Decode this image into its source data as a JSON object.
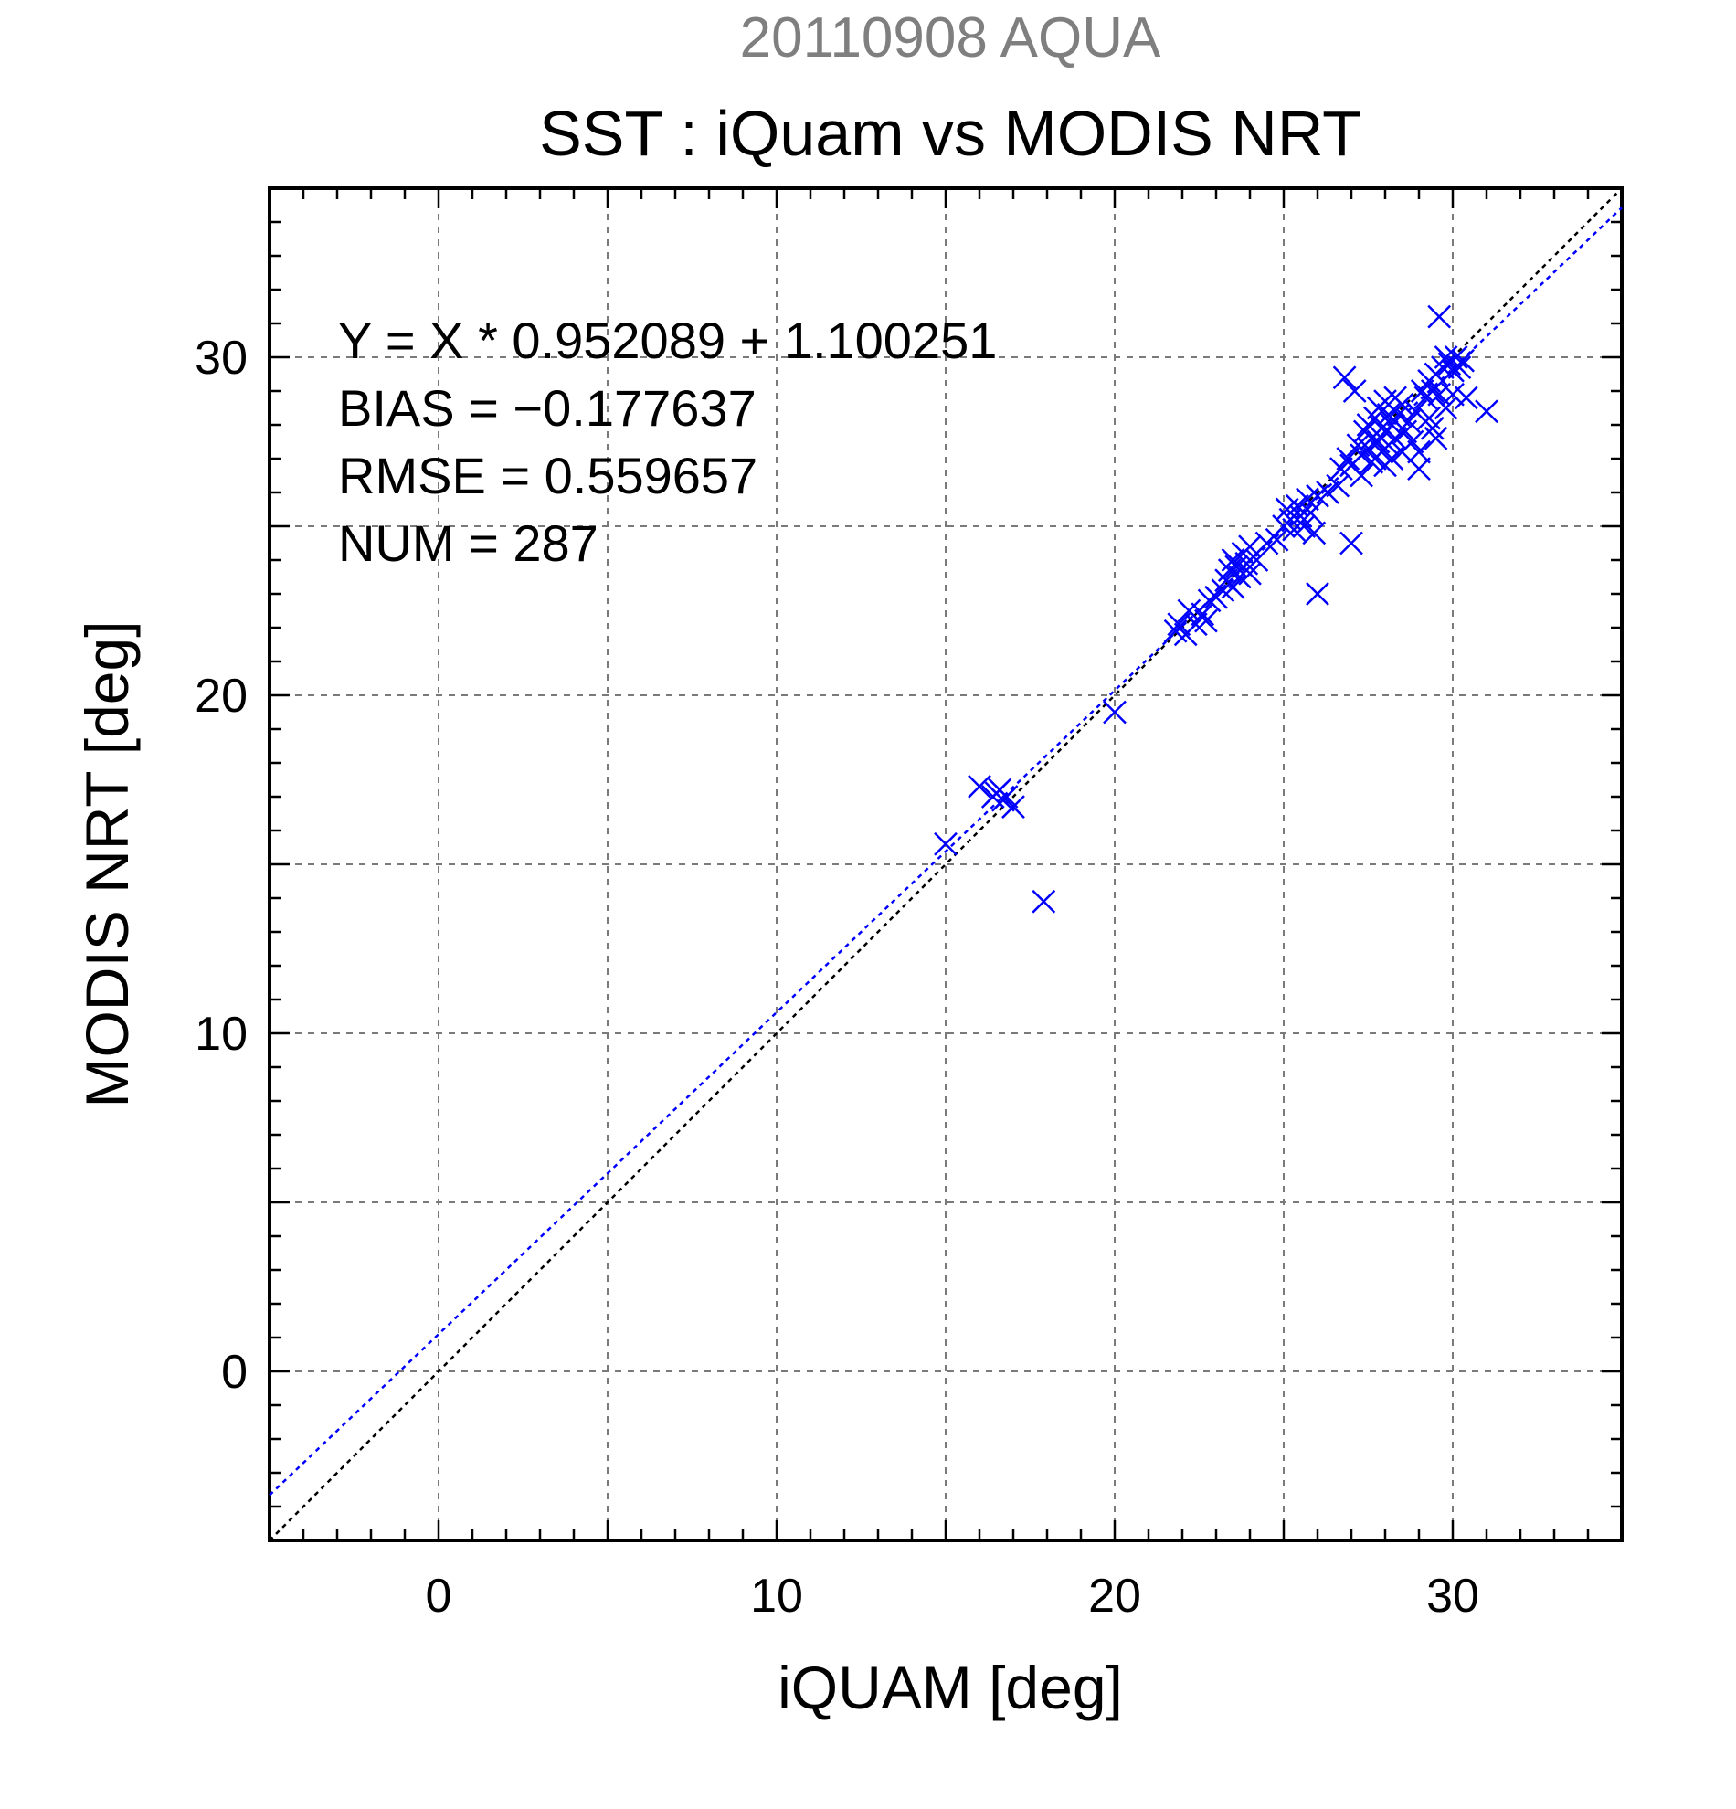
{
  "chart_data": {
    "type": "scatter",
    "supertitle": "20110908 AQUA",
    "title": "SST : iQuam vs MODIS NRT",
    "xlabel": "iQUAM [deg]",
    "ylabel": "MODIS NRT [deg]",
    "xlim": [
      -5,
      35
    ],
    "ylim": [
      -5,
      35
    ],
    "xticks": [
      0,
      10,
      20,
      30
    ],
    "yticks": [
      0,
      10,
      20,
      30
    ],
    "grid": true,
    "grid_step": 5,
    "minor_step": 1,
    "stats": [
      "Y = X * 0.952089 + 1.100251",
      "BIAS = −0.177637",
      "RMSE = 0.559657",
      "NUM = 287"
    ],
    "fit": {
      "slope": 0.952089,
      "intercept": 1.100251
    },
    "colors": {
      "points": "#0000ff",
      "fit_line": "#0000ff",
      "one_to_one": "#000000",
      "supertitle": "#7f7f7f"
    },
    "marker": "x",
    "series": [
      {
        "points": [
          [
            15.0,
            15.6
          ],
          [
            16.0,
            17.3
          ],
          [
            16.4,
            17.0
          ],
          [
            16.6,
            17.2
          ],
          [
            16.8,
            17.0
          ],
          [
            17.0,
            16.7
          ],
          [
            16.7,
            16.9
          ],
          [
            16.5,
            17.1
          ],
          [
            17.9,
            13.9
          ],
          [
            20.0,
            19.5
          ],
          [
            21.8,
            21.9
          ],
          [
            21.9,
            22.1
          ],
          [
            22.1,
            21.8
          ],
          [
            22.2,
            22.5
          ],
          [
            22.4,
            22.1
          ],
          [
            22.6,
            22.4
          ],
          [
            22.8,
            22.8
          ],
          [
            22.7,
            22.2
          ],
          [
            23.0,
            22.9
          ],
          [
            23.2,
            23.1
          ],
          [
            23.3,
            23.4
          ],
          [
            23.4,
            23.7
          ],
          [
            23.5,
            23.2
          ],
          [
            23.5,
            24.0
          ],
          [
            23.6,
            23.8
          ],
          [
            23.7,
            23.5
          ],
          [
            23.8,
            24.2
          ],
          [
            23.9,
            23.9
          ],
          [
            24.0,
            24.4
          ],
          [
            24.0,
            23.6
          ],
          [
            24.2,
            24.0
          ],
          [
            24.5,
            24.5
          ],
          [
            24.8,
            24.6
          ],
          [
            25.0,
            25.0
          ],
          [
            25.1,
            25.5
          ],
          [
            25.2,
            25.2
          ],
          [
            25.3,
            24.9
          ],
          [
            25.4,
            25.6
          ],
          [
            25.5,
            25.3
          ],
          [
            25.6,
            25.0
          ],
          [
            25.7,
            25.8
          ],
          [
            25.8,
            25.4
          ],
          [
            25.9,
            24.8
          ],
          [
            26.0,
            25.9
          ],
          [
            26.0,
            23.0
          ],
          [
            26.3,
            26.0
          ],
          [
            26.6,
            26.2
          ],
          [
            26.7,
            26.7
          ],
          [
            26.8,
            29.4
          ],
          [
            26.9,
            27.0
          ],
          [
            27.0,
            26.8
          ],
          [
            27.0,
            24.5
          ],
          [
            27.1,
            29.0
          ],
          [
            27.2,
            27.4
          ],
          [
            27.3,
            27.1
          ],
          [
            27.3,
            26.5
          ],
          [
            27.4,
            27.8
          ],
          [
            27.5,
            27.3
          ],
          [
            27.5,
            28.0
          ],
          [
            27.6,
            26.9
          ],
          [
            27.6,
            27.6
          ],
          [
            27.7,
            28.2
          ],
          [
            27.7,
            27.0
          ],
          [
            27.8,
            27.5
          ],
          [
            27.8,
            28.5
          ],
          [
            27.9,
            27.2
          ],
          [
            27.9,
            27.9
          ],
          [
            28.0,
            28.7
          ],
          [
            28.0,
            26.8
          ],
          [
            28.1,
            27.4
          ],
          [
            28.1,
            28.3
          ],
          [
            28.2,
            28.0
          ],
          [
            28.2,
            27.0
          ],
          [
            28.3,
            28.8
          ],
          [
            28.3,
            27.6
          ],
          [
            28.4,
            28.3
          ],
          [
            28.5,
            27.2
          ],
          [
            28.5,
            28.6
          ],
          [
            28.6,
            27.8
          ],
          [
            28.7,
            28.1
          ],
          [
            28.8,
            27.5
          ],
          [
            28.9,
            28.4
          ],
          [
            29.0,
            26.7
          ],
          [
            29.0,
            27.2
          ],
          [
            29.1,
            29.0
          ],
          [
            29.2,
            28.8
          ],
          [
            29.3,
            29.3
          ],
          [
            29.3,
            28.2
          ],
          [
            29.4,
            29.0
          ],
          [
            29.4,
            27.9
          ],
          [
            29.5,
            29.5
          ],
          [
            29.5,
            27.6
          ],
          [
            29.6,
            28.9
          ],
          [
            29.6,
            31.2
          ],
          [
            29.7,
            29.7
          ],
          [
            29.8,
            30.0
          ],
          [
            29.8,
            28.5
          ],
          [
            29.9,
            29.8
          ],
          [
            30.0,
            29.6
          ],
          [
            30.0,
            28.9
          ],
          [
            30.1,
            30.0
          ],
          [
            30.2,
            29.7
          ],
          [
            30.3,
            29.9
          ],
          [
            30.4,
            28.8
          ],
          [
            31.0,
            28.4
          ]
        ]
      }
    ]
  }
}
